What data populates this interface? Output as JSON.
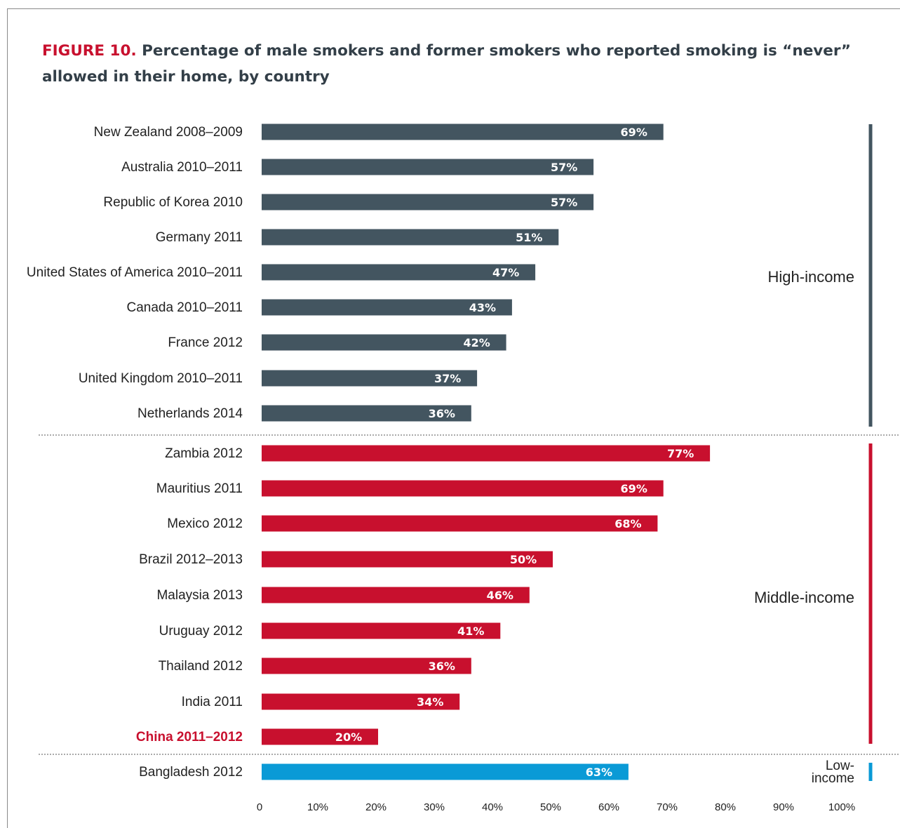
{
  "title": {
    "prefix": "FIGURE 10.",
    "text": "Percentage of male smokers and former smokers who reported smoking is “never” allowed in their home, by country"
  },
  "colors": {
    "high_income": "#435560",
    "middle_income": "#c8102e",
    "low_income": "#0a9ad6",
    "highlight_label": "#c8102e",
    "title_accent": "#c8102e"
  },
  "chart_data": {
    "type": "bar",
    "orientation": "horizontal",
    "categories": [
      "New Zealand 2008–2009",
      "Australia 2010–2011",
      "Republic of Korea 2010",
      "Germany 2011",
      "United States of America 2010–2011",
      "Canada 2010–2011",
      "France 2012",
      "United Kingdom 2010–2011",
      "Netherlands 2014",
      "Zambia 2012",
      "Mauritius 2011",
      "Mexico 2012",
      "Brazil 2012–2013",
      "Malaysia 2013",
      "Uruguay 2012",
      "Thailand 2012",
      "India 2011",
      "China 2011–2012",
      "Bangladesh 2012"
    ],
    "values": [
      69,
      57,
      57,
      51,
      47,
      43,
      42,
      37,
      36,
      77,
      69,
      68,
      50,
      46,
      41,
      36,
      34,
      20,
      63
    ],
    "value_labels": [
      "69%",
      "57%",
      "57%",
      "51%",
      "47%",
      "43%",
      "42%",
      "37%",
      "36%",
      "77%",
      "69%",
      "68%",
      "50%",
      "46%",
      "41%",
      "36%",
      "34%",
      "20%",
      "63%"
    ],
    "groups": [
      {
        "name": "High-income",
        "start": 0,
        "end": 8,
        "color": "#435560"
      },
      {
        "name": "Middle-income",
        "start": 9,
        "end": 17,
        "color": "#c8102e"
      },
      {
        "name": "Low-income",
        "lines": [
          "Low-",
          "income"
        ],
        "start": 18,
        "end": 18,
        "color": "#0a9ad6"
      }
    ],
    "highlighted_category": "China 2011–2012",
    "xlim": [
      0,
      100
    ],
    "x_ticks": [
      "0",
      "10%",
      "20%",
      "30%",
      "40%",
      "50%",
      "60%",
      "70%",
      "80%",
      "90%",
      "100%"
    ],
    "xlabel": "",
    "ylabel": "",
    "grid": false,
    "legend": "none"
  }
}
